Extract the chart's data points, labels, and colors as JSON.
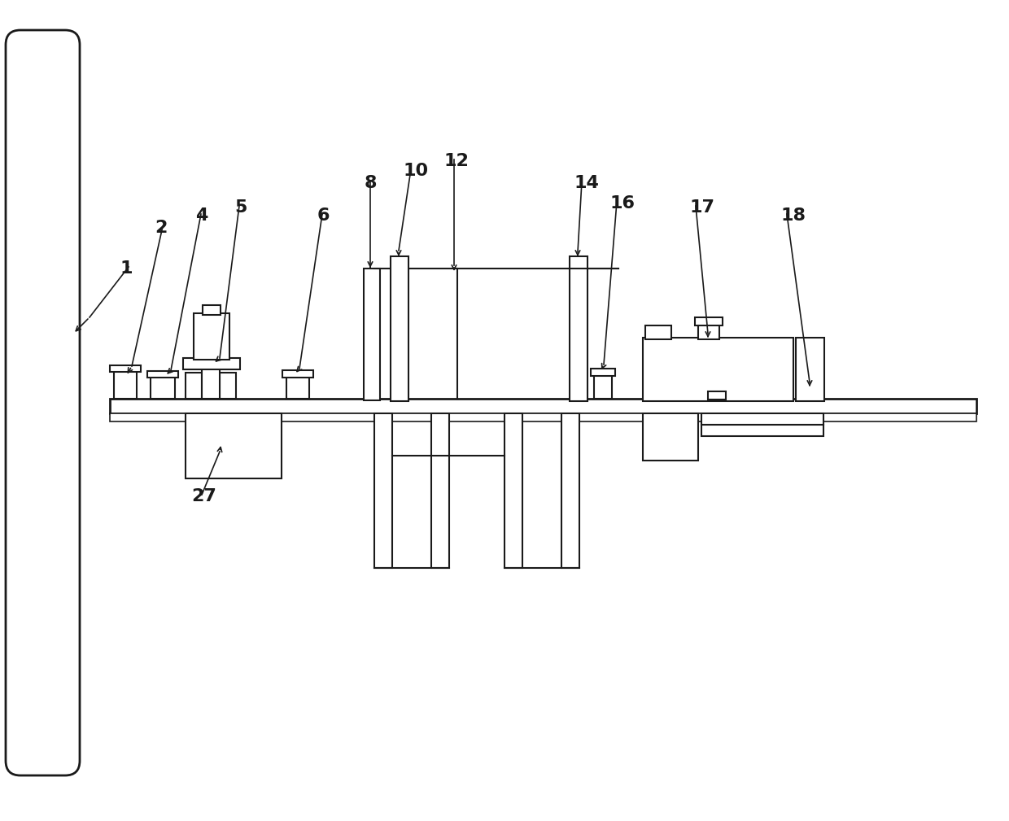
{
  "bg_color": "#ffffff",
  "line_color": "#1a1a1a",
  "lw": 1.5,
  "fig_width": 12.4,
  "fig_height": 10.09,
  "dpi": 100
}
